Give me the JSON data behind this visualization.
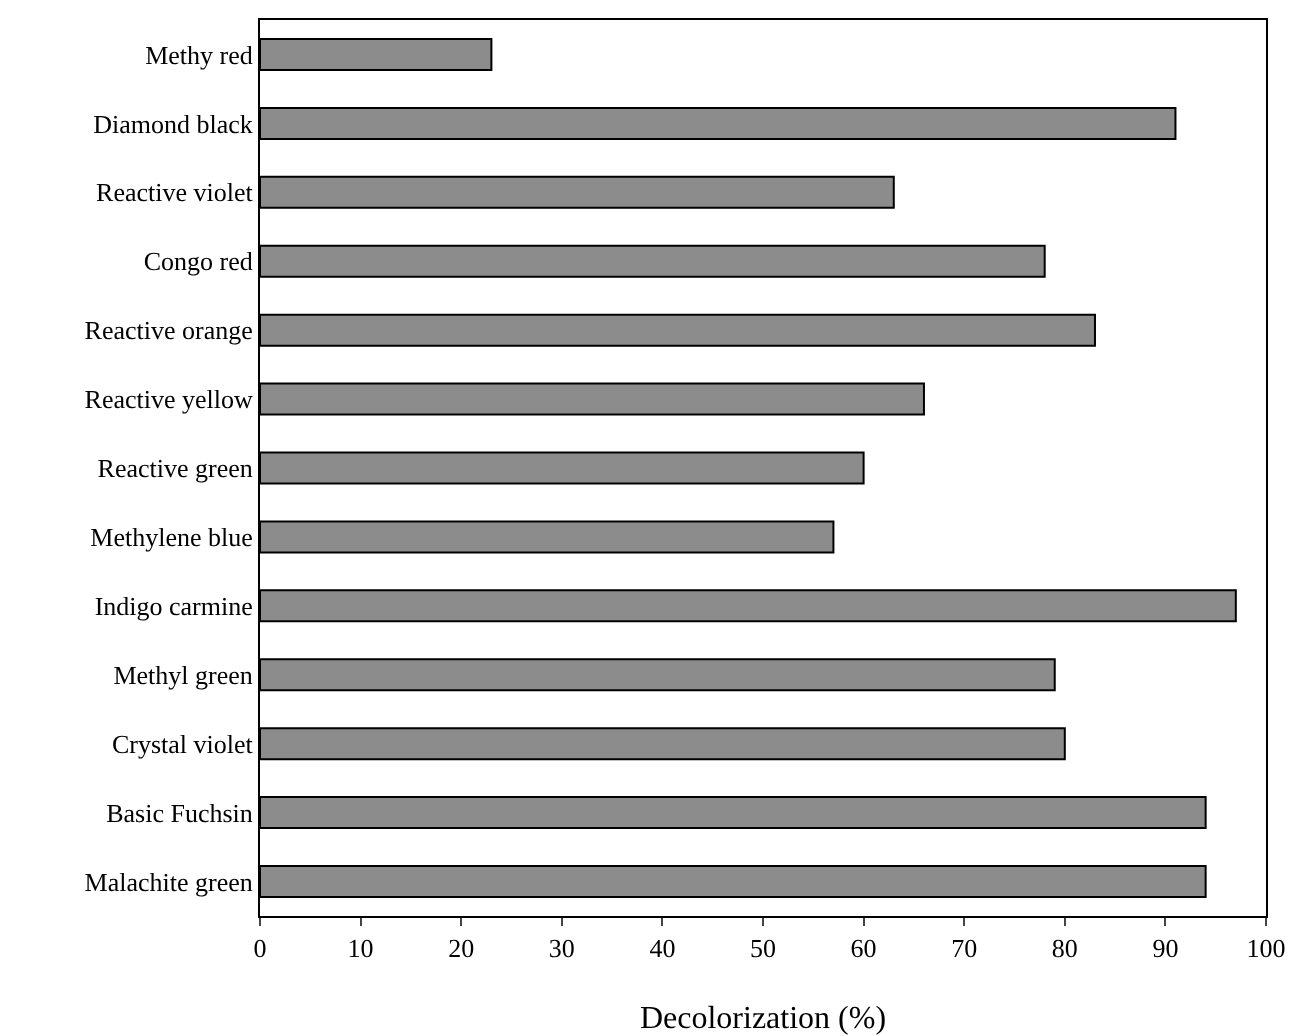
{
  "chart_data": {
    "type": "bar",
    "orientation": "horizontal",
    "xlabel": "Decolorization (%)",
    "categories": [
      "Methy red",
      "Diamond black",
      "Reactive violet",
      "Congo red",
      "Reactive orange",
      "Reactive yellow",
      "Reactive green",
      "Methylene blue",
      "Indigo carmine",
      "Methyl green",
      "Crystal violet",
      "Basic Fuchsin",
      "Malachite green"
    ],
    "values": [
      23,
      91,
      63,
      78,
      83,
      66,
      60,
      57,
      97,
      79,
      80,
      94,
      94
    ],
    "color": "#8c8c8c",
    "xlim": [
      0,
      100
    ],
    "xticks": [
      0,
      10,
      20,
      30,
      40,
      50,
      60,
      70,
      80,
      90,
      100
    ],
    "grid": false,
    "legend": false
  }
}
